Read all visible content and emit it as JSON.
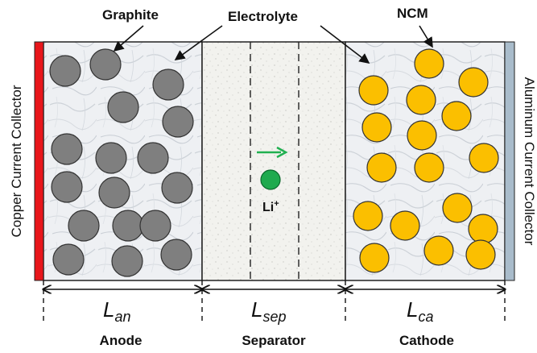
{
  "labels": {
    "graphite": "Graphite",
    "electrolyte": "Electrolyte",
    "ncm": "NCM",
    "copper_collector": "Copper Current Collector",
    "aluminum_collector": "Aluminum Current Collector",
    "li_ion": "Li",
    "li_ion_charge": "+",
    "L_main": "L",
    "L_an_sub": "an",
    "L_sep_sub": "sep",
    "L_ca_sub": "ca",
    "anode": "Anode",
    "separator": "Separator",
    "cathode": "Cathode"
  },
  "colors": {
    "copper": "#e8161b",
    "aluminum": "#a9bccb",
    "graphite_fill": "#7f7f7f",
    "ncm_fill": "#fbbf00",
    "li_ion": "#1faa4e",
    "arrow": "#20b050"
  }
}
